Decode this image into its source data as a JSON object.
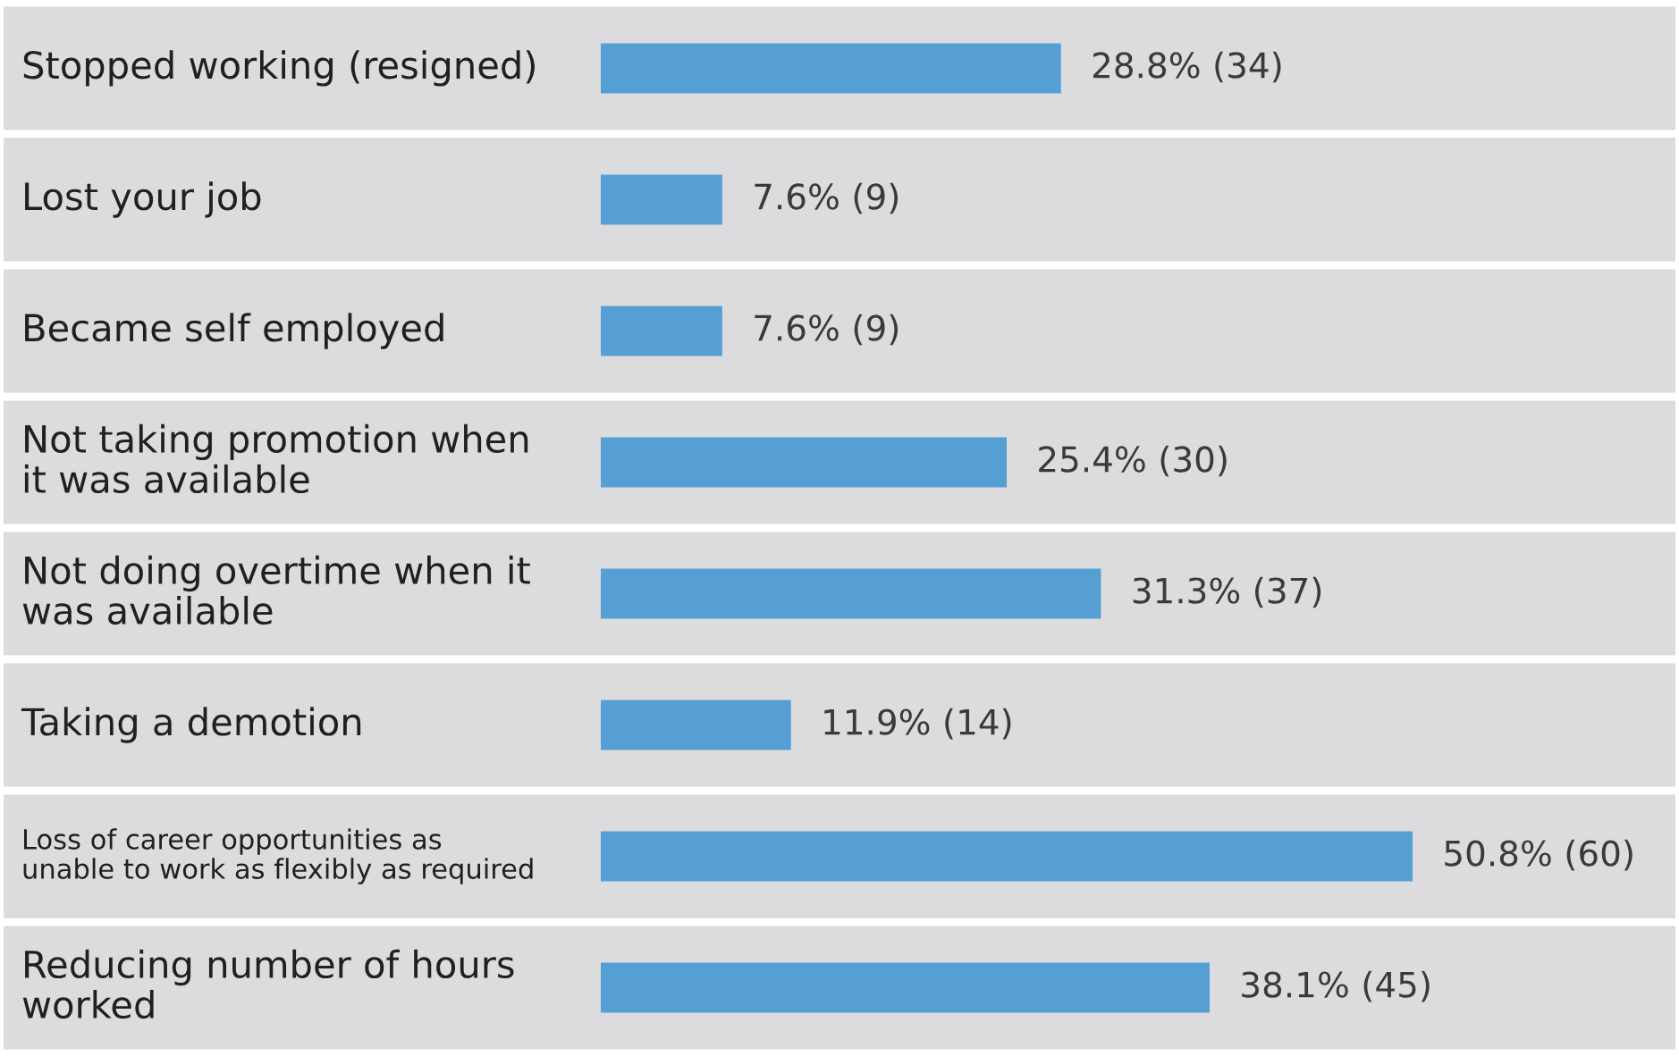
{
  "chart_data": {
    "type": "bar",
    "orientation": "horizontal",
    "categories": [
      "Stopped working (resigned)",
      "Lost your job",
      "Became self employed",
      "Not taking promotion when\nit was available",
      "Not doing overtime when it\nwas available",
      "Taking a demotion",
      "Loss of career opportunities as\nunable to work as flexibly as required",
      "Reducing number of hours\nworked"
    ],
    "values": [
      28.8,
      7.6,
      7.6,
      25.4,
      31.3,
      11.9,
      50.8,
      38.1
    ],
    "value_labels": [
      "28.8% (34)",
      "7.6% (9)",
      "7.6% (9)",
      "25.4% (30)",
      "31.3% (37)",
      "11.9% (14)",
      "50.8% (60)",
      "38.1% (45)"
    ],
    "color": "#559fd5"
  }
}
